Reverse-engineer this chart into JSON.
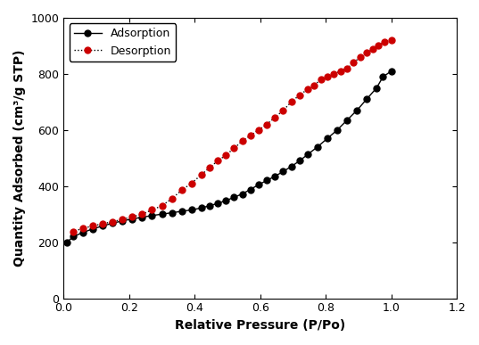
{
  "adsorption_x": [
    0.01,
    0.03,
    0.06,
    0.09,
    0.12,
    0.15,
    0.18,
    0.21,
    0.24,
    0.27,
    0.3,
    0.33,
    0.36,
    0.39,
    0.42,
    0.445,
    0.47,
    0.495,
    0.52,
    0.545,
    0.57,
    0.595,
    0.62,
    0.645,
    0.67,
    0.695,
    0.72,
    0.745,
    0.775,
    0.805,
    0.835,
    0.865,
    0.895,
    0.925,
    0.955,
    0.975,
    1.0
  ],
  "adsorption_y": [
    200,
    220,
    235,
    248,
    258,
    268,
    276,
    283,
    289,
    295,
    300,
    305,
    310,
    315,
    322,
    330,
    338,
    348,
    360,
    372,
    388,
    405,
    420,
    435,
    452,
    470,
    490,
    513,
    540,
    570,
    600,
    635,
    670,
    710,
    750,
    790,
    810
  ],
  "desorption_x": [
    1.0,
    0.98,
    0.96,
    0.945,
    0.925,
    0.905,
    0.885,
    0.865,
    0.845,
    0.825,
    0.805,
    0.785,
    0.765,
    0.745,
    0.72,
    0.695,
    0.67,
    0.645,
    0.62,
    0.595,
    0.57,
    0.545,
    0.52,
    0.495,
    0.47,
    0.445,
    0.42,
    0.39,
    0.36,
    0.33,
    0.3,
    0.27,
    0.24,
    0.21,
    0.18,
    0.15,
    0.12,
    0.09,
    0.06,
    0.03
  ],
  "desorption_y": [
    920,
    915,
    900,
    890,
    875,
    860,
    840,
    820,
    810,
    800,
    790,
    780,
    760,
    745,
    725,
    700,
    670,
    645,
    620,
    600,
    580,
    560,
    535,
    510,
    490,
    465,
    440,
    410,
    385,
    355,
    330,
    315,
    300,
    290,
    282,
    273,
    266,
    258,
    250,
    238
  ],
  "adsorption_color": "#000000",
  "desorption_color": "#cc0000",
  "adsorption_label": "Adsorption",
  "desorption_label": "Desorption",
  "xlabel": "Relative Pressure (P/Po)",
  "ylabel": "Quantity Adsorbed (cm³/g STP)",
  "xlim": [
    0.0,
    1.2
  ],
  "ylim": [
    0,
    1000
  ],
  "xticks": [
    0.0,
    0.2,
    0.4,
    0.6,
    0.8,
    1.0,
    1.2
  ],
  "yticks": [
    0,
    200,
    400,
    600,
    800,
    1000
  ],
  "marker_size": 5,
  "line_width": 1.0,
  "legend_loc": "upper left",
  "legend_fontsize": 9,
  "axis_label_fontsize": 10,
  "tick_label_fontsize": 9
}
